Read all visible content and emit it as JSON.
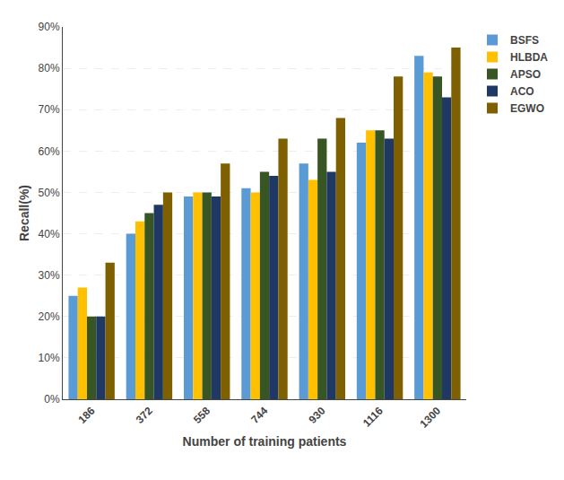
{
  "chart_data": {
    "type": "bar",
    "xlabel": "Number of training patients",
    "ylabel": "Recall(%)",
    "categories": [
      "186",
      "372",
      "558",
      "744",
      "930",
      "1116",
      "1300"
    ],
    "series": [
      {
        "name": "BSFS",
        "color": "#5b9bd5",
        "values": [
          25,
          40,
          49,
          51,
          57,
          62,
          83
        ]
      },
      {
        "name": "HLBDA",
        "color": "#ffc000",
        "values": [
          27,
          43,
          50,
          50,
          53,
          65,
          79
        ]
      },
      {
        "name": "APSO",
        "color": "#375623",
        "values": [
          20,
          45,
          50,
          55,
          63,
          65,
          78
        ]
      },
      {
        "name": "ACO",
        "color": "#1f3864",
        "values": [
          20,
          47,
          49,
          54,
          55,
          63,
          73
        ]
      },
      {
        "name": "EGWO",
        "color": "#7f6000",
        "values": [
          33,
          50,
          57,
          63,
          68,
          78,
          85
        ]
      }
    ],
    "ylim": [
      0,
      90
    ],
    "yticks": [
      {
        "value": 0,
        "label": "0%"
      },
      {
        "value": 10,
        "label": "10%"
      },
      {
        "value": 20,
        "label": "20%"
      },
      {
        "value": 30,
        "label": "30%"
      },
      {
        "value": 40,
        "label": "40%"
      },
      {
        "value": 50,
        "label": "50%"
      },
      {
        "value": 60,
        "label": "60%"
      },
      {
        "value": 70,
        "label": "70%"
      },
      {
        "value": 80,
        "label": "80%"
      },
      {
        "value": 90,
        "label": "90%"
      }
    ],
    "grid": true,
    "legend": "right"
  }
}
